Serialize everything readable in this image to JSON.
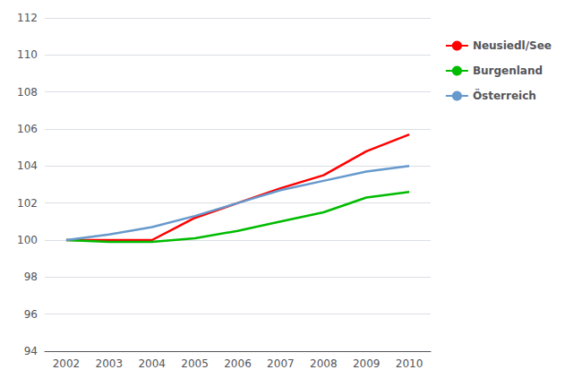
{
  "chart_data": {
    "type": "line",
    "categories": [
      "2002",
      "2003",
      "2004",
      "2005",
      "2006",
      "2007",
      "2008",
      "2009",
      "2010"
    ],
    "series": [
      {
        "name": "Neusiedl/See",
        "color": "#ff0000",
        "values": [
          100.0,
          100.0,
          100.0,
          101.2,
          102.0,
          102.8,
          103.5,
          104.8,
          105.7
        ]
      },
      {
        "name": "Burgenland",
        "color": "#00bb00",
        "values": [
          100.0,
          99.9,
          99.9,
          100.1,
          100.5,
          101.0,
          101.5,
          102.3,
          102.6
        ]
      },
      {
        "name": "Österreich",
        "color": "#6699cc",
        "values": [
          100.0,
          100.3,
          100.7,
          101.3,
          102.0,
          102.7,
          103.2,
          103.7,
          104.0
        ]
      }
    ],
    "ylim": [
      94,
      112
    ],
    "yticks": [
      94,
      96,
      98,
      100,
      102,
      104,
      106,
      108,
      110,
      112
    ],
    "grid": true,
    "legend": "right",
    "line_style": "solid"
  }
}
